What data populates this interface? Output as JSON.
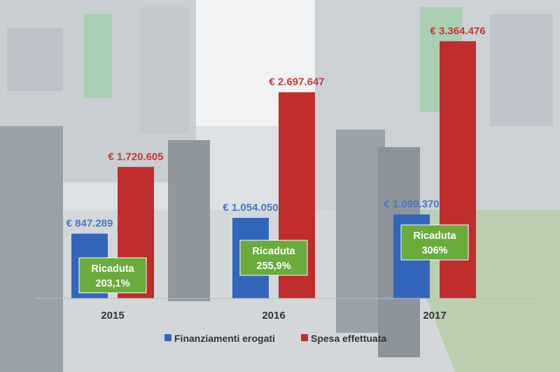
{
  "chart_data": {
    "type": "bar",
    "categories": [
      "2015",
      "2016",
      "2017"
    ],
    "series": [
      {
        "name": "Finanziamenti erogati",
        "values": [
          847289,
          1054050,
          1099370
        ],
        "labels": [
          "€ 847.289",
          "€ 1.054.050",
          "€ 1.099.370"
        ],
        "color": "#3366bb"
      },
      {
        "name": "Spesa effettuata",
        "values": [
          1720605,
          2697647,
          3364476
        ],
        "labels": [
          "€ 1.720.605",
          "€ 2.697.647",
          "€ 3.364.476"
        ],
        "color": "#bf2d2d"
      }
    ],
    "ratio_labels": [
      {
        "title": "Ricaduta",
        "value": "203,1%"
      },
      {
        "title": "Ricaduta",
        "value": "255,9%"
      },
      {
        "title": "Ricaduta",
        "value": "306%"
      }
    ],
    "ratio_color": "#6aab3c",
    "ylim": [
      0,
      3400000
    ],
    "legend_position": "bottom",
    "grid": false
  }
}
